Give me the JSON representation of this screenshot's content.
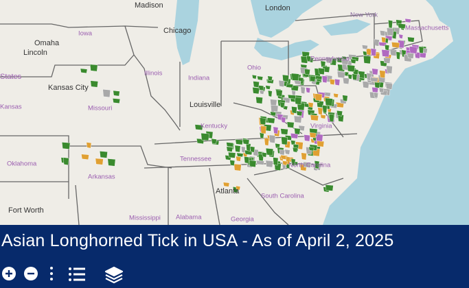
{
  "title": "Asian Longhorned Tick in USA - As of April 2, 2025",
  "map_labels": {
    "cities": [
      "Madison",
      "London",
      "New York",
      "Chicago",
      "Omaha",
      "Lincoln",
      "Kansas City",
      "Louisville",
      "Atlanta",
      "Fort Worth"
    ],
    "states": [
      "Massachusetts",
      "Iowa",
      "States",
      "Illinois",
      "Indiana",
      "Ohio",
      "Pennsylvania",
      "Missouri",
      "Kansas",
      "Kentucky",
      "Virginia",
      "Oklahoma",
      "Tennessee",
      "Arkansas",
      "North Carolina",
      "South Carolina",
      "Mississippi",
      "Alabama",
      "Georgia"
    ]
  }
}
